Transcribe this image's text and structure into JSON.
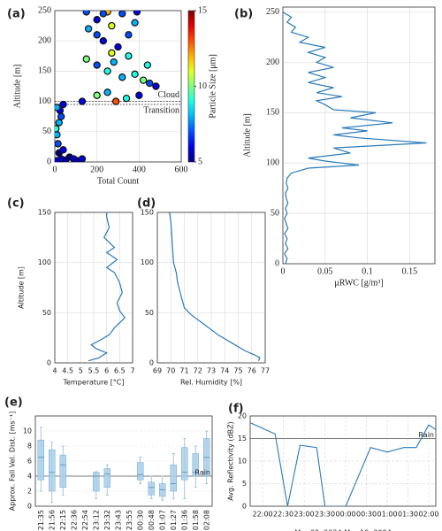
{
  "chart_data": [
    {
      "type": "scatter",
      "label": "(a)",
      "xlabel": "Total Count",
      "ylabel": "Altitude [m]",
      "xlim": [
        0,
        600
      ],
      "xticks": [
        0,
        200,
        400,
        600
      ],
      "ylim": [
        0,
        250
      ],
      "yticks": [
        0,
        50,
        100,
        150,
        200,
        250
      ],
      "grid": true,
      "x": [
        10,
        30,
        50,
        70,
        90,
        110,
        130,
        20,
        40,
        15,
        10,
        5,
        20,
        30,
        25,
        40,
        10,
        290,
        200,
        250,
        130,
        340,
        400,
        450,
        480,
        420,
        380,
        320,
        250,
        200,
        150,
        280,
        350,
        440,
        300,
        230,
        200,
        350,
        270,
        380,
        200,
        320,
        250,
        150,
        390,
        230,
        160,
        270
      ],
      "values": [
        2,
        5,
        3,
        8,
        5,
        2,
        5,
        15,
        20,
        30,
        45,
        55,
        65,
        75,
        85,
        95,
        90,
        100,
        110,
        115,
        100,
        105,
        110,
        130,
        125,
        135,
        145,
        140,
        150,
        160,
        170,
        165,
        175,
        160,
        190,
        200,
        210,
        210,
        225,
        230,
        235,
        245,
        248,
        248,
        248,
        245,
        220,
        180
      ],
      "sizes": [
        6,
        6,
        5.5,
        5,
        6,
        5.5,
        6,
        5,
        6,
        7,
        8,
        9,
        8,
        7,
        6,
        6,
        8,
        13,
        10,
        8,
        6,
        9,
        6,
        7,
        6,
        10,
        9,
        8,
        9,
        7,
        10,
        8,
        9,
        9,
        6,
        6,
        7,
        7,
        11,
        8,
        6,
        7,
        12,
        7,
        6,
        7,
        8,
        11
      ],
      "colorbar_label": "Particle Size [μm]",
      "clim": [
        5,
        15
      ],
      "cticks": [
        5,
        10,
        15
      ],
      "colormap": "jet",
      "annotations": [
        {
          "text": "Cloud",
          "value": 100
        },
        {
          "text": "Transition",
          "value": 95
        }
      ]
    },
    {
      "type": "profile",
      "label": "(b)",
      "xlabel": "μRWC [g/m³]",
      "ylabel": "Altitude [m]",
      "color": "#2a7ab9",
      "xlim": [
        0,
        0.18
      ],
      "xticks": [
        0,
        0.05,
        0.1,
        0.15
      ],
      "ylim": [
        0,
        255
      ],
      "yticks": [
        0,
        50,
        100,
        150,
        200,
        250
      ],
      "grid": true,
      "values": [
        0.003,
        0.005,
        0.002,
        0.006,
        0.003,
        0.005,
        0.002,
        0.006,
        0.004,
        0.002,
        0.005,
        0.003,
        0.006,
        0.004,
        0.003,
        0.006,
        0.004,
        0.005,
        0.01,
        0.03,
        0.09,
        0.05,
        0.03,
        0.08,
        0.06,
        0.17,
        0.09,
        0.06,
        0.1,
        0.07,
        0.13,
        0.08,
        0.11,
        0.06,
        0.05,
        0.04,
        0.07,
        0.04,
        0.06,
        0.03,
        0.05,
        0.03,
        0.06,
        0.04,
        0.05,
        0.03,
        0.05,
        0.02,
        0.03,
        0.01,
        0.015,
        0.005,
        0.01,
        0.0
      ],
      "y": [
        0,
        5,
        10,
        15,
        20,
        25,
        30,
        35,
        40,
        45,
        50,
        55,
        60,
        65,
        70,
        75,
        80,
        85,
        90,
        95,
        98,
        102,
        105,
        110,
        115,
        120,
        125,
        128,
        132,
        135,
        140,
        145,
        150,
        153,
        158,
        162,
        166,
        170,
        175,
        180,
        185,
        190,
        195,
        200,
        205,
        210,
        215,
        220,
        225,
        230,
        235,
        240,
        245,
        250
      ]
    },
    {
      "type": "profile",
      "label": "(c)",
      "xlabel": "Temperature [°C]",
      "ylabel": "Altitude [m]",
      "color": "#2a7ab9",
      "xlim": [
        4,
        7
      ],
      "xticks": [
        4,
        4.5,
        5,
        5.5,
        6,
        6.5,
        7
      ],
      "ylim": [
        0,
        150
      ],
      "yticks": [
        0,
        50,
        100,
        150
      ],
      "grid": true,
      "values": [
        5.3,
        5.7,
        6.0,
        5.8,
        5.6,
        5.4,
        5.7,
        6.1,
        6.3,
        6.7,
        6.5,
        6.4,
        6.6,
        6.5,
        6.3,
        6.0,
        6.4,
        6.0,
        6.3,
        5.9,
        6.1,
        6.0,
        6.0
      ],
      "y": [
        2,
        5,
        10,
        12,
        14,
        18,
        22,
        28,
        35,
        45,
        52,
        60,
        70,
        80,
        90,
        95,
        103,
        110,
        115,
        125,
        135,
        145,
        150
      ]
    },
    {
      "type": "profile",
      "label": "(d)",
      "xlabel": "Rel. Humidity [%]",
      "color": "#2a7ab9",
      "xlim": [
        69,
        77
      ],
      "xticks": [
        69,
        70,
        71,
        72,
        73,
        74,
        75,
        76,
        77
      ],
      "ylim": [
        0,
        150
      ],
      "yticks": [
        0,
        50,
        100,
        150
      ],
      "grid": true,
      "values": [
        76.5,
        76.6,
        76.2,
        75.5,
        74.5,
        73.5,
        72.5,
        71.5,
        71,
        70.8,
        70.5,
        70.4,
        70.2,
        70.1,
        70,
        69.9
      ],
      "y": [
        2,
        5,
        8,
        12,
        20,
        28,
        38,
        48,
        55,
        65,
        80,
        90,
        100,
        120,
        140,
        150
      ]
    },
    {
      "type": "box",
      "label": "(e)",
      "ylabel": "Approx. Fall Vel. Dist. [ms⁻¹]",
      "color": "#a9cfea",
      "ylim": [
        0,
        12
      ],
      "yticks": [
        0,
        2,
        4,
        6,
        8,
        10
      ],
      "grid": true,
      "categories": [
        "21:35",
        "21:56",
        "22:15",
        "22:36",
        "22:54",
        "23:12",
        "23:32",
        "23:43",
        "23:55",
        "00:30",
        "00:48",
        "01:07",
        "01:27",
        "01:36",
        "01:58",
        "02:08"
      ],
      "min": [
        2,
        0.5,
        1.5,
        null,
        null,
        1,
        1.5,
        null,
        null,
        3,
        1,
        0.8,
        1,
        1,
        2.5,
        3
      ],
      "q1": [
        3.5,
        2,
        2.5,
        null,
        null,
        2,
        2.5,
        null,
        null,
        3.5,
        1.5,
        1.3,
        2,
        3.5,
        4,
        4
      ],
      "median": [
        6.5,
        4.5,
        5.5,
        null,
        null,
        4,
        4.3,
        null,
        null,
        4.2,
        2.5,
        2.2,
        3,
        4.5,
        4.5,
        6.5
      ],
      "q3": [
        8.8,
        7.5,
        6.8,
        null,
        null,
        4.5,
        5,
        null,
        null,
        5.8,
        3.2,
        3,
        5.5,
        7.8,
        7,
        9
      ],
      "max": [
        10.5,
        8.5,
        8,
        null,
        null,
        4.6,
        5.5,
        null,
        null,
        6.5,
        4,
        4,
        7,
        9,
        8,
        10
      ],
      "reference_line": {
        "value": 4,
        "label": "Rain"
      }
    },
    {
      "type": "line",
      "label": "(f)",
      "xlabel": "Mar 09, 2024-Mar 10, 2024",
      "ylabel": "Avg. Reflectivity (dBZ)",
      "color": "#2a7ab9",
      "xlim": [
        21.7,
        26.17
      ],
      "xticks": [
        {
          "value": 22,
          "label": "22:00"
        },
        {
          "value": 22.5,
          "label": "22:30"
        },
        {
          "value": 23,
          "label": "23:00"
        },
        {
          "value": 23.5,
          "label": "23:30"
        },
        {
          "value": 24,
          "label": "00:00"
        },
        {
          "value": 24.5,
          "label": "00:30"
        },
        {
          "value": 25,
          "label": "01:00"
        },
        {
          "value": 25.5,
          "label": "01:30"
        },
        {
          "value": 26,
          "label": "02:00"
        }
      ],
      "ylim": [
        0,
        20
      ],
      "yticks": [
        0,
        5,
        10,
        15,
        20
      ],
      "grid": true,
      "x": [
        21.7,
        22.3,
        22.6,
        22.9,
        23.3,
        23.5,
        24.0,
        24.6,
        25.0,
        25.4,
        25.7,
        26.0,
        26.17
      ],
      "values": [
        18.5,
        16,
        0,
        13.5,
        13,
        0,
        0,
        13,
        12,
        13,
        13,
        18,
        17
      ],
      "reference_line": {
        "value": 15,
        "label": "Rain"
      }
    }
  ]
}
